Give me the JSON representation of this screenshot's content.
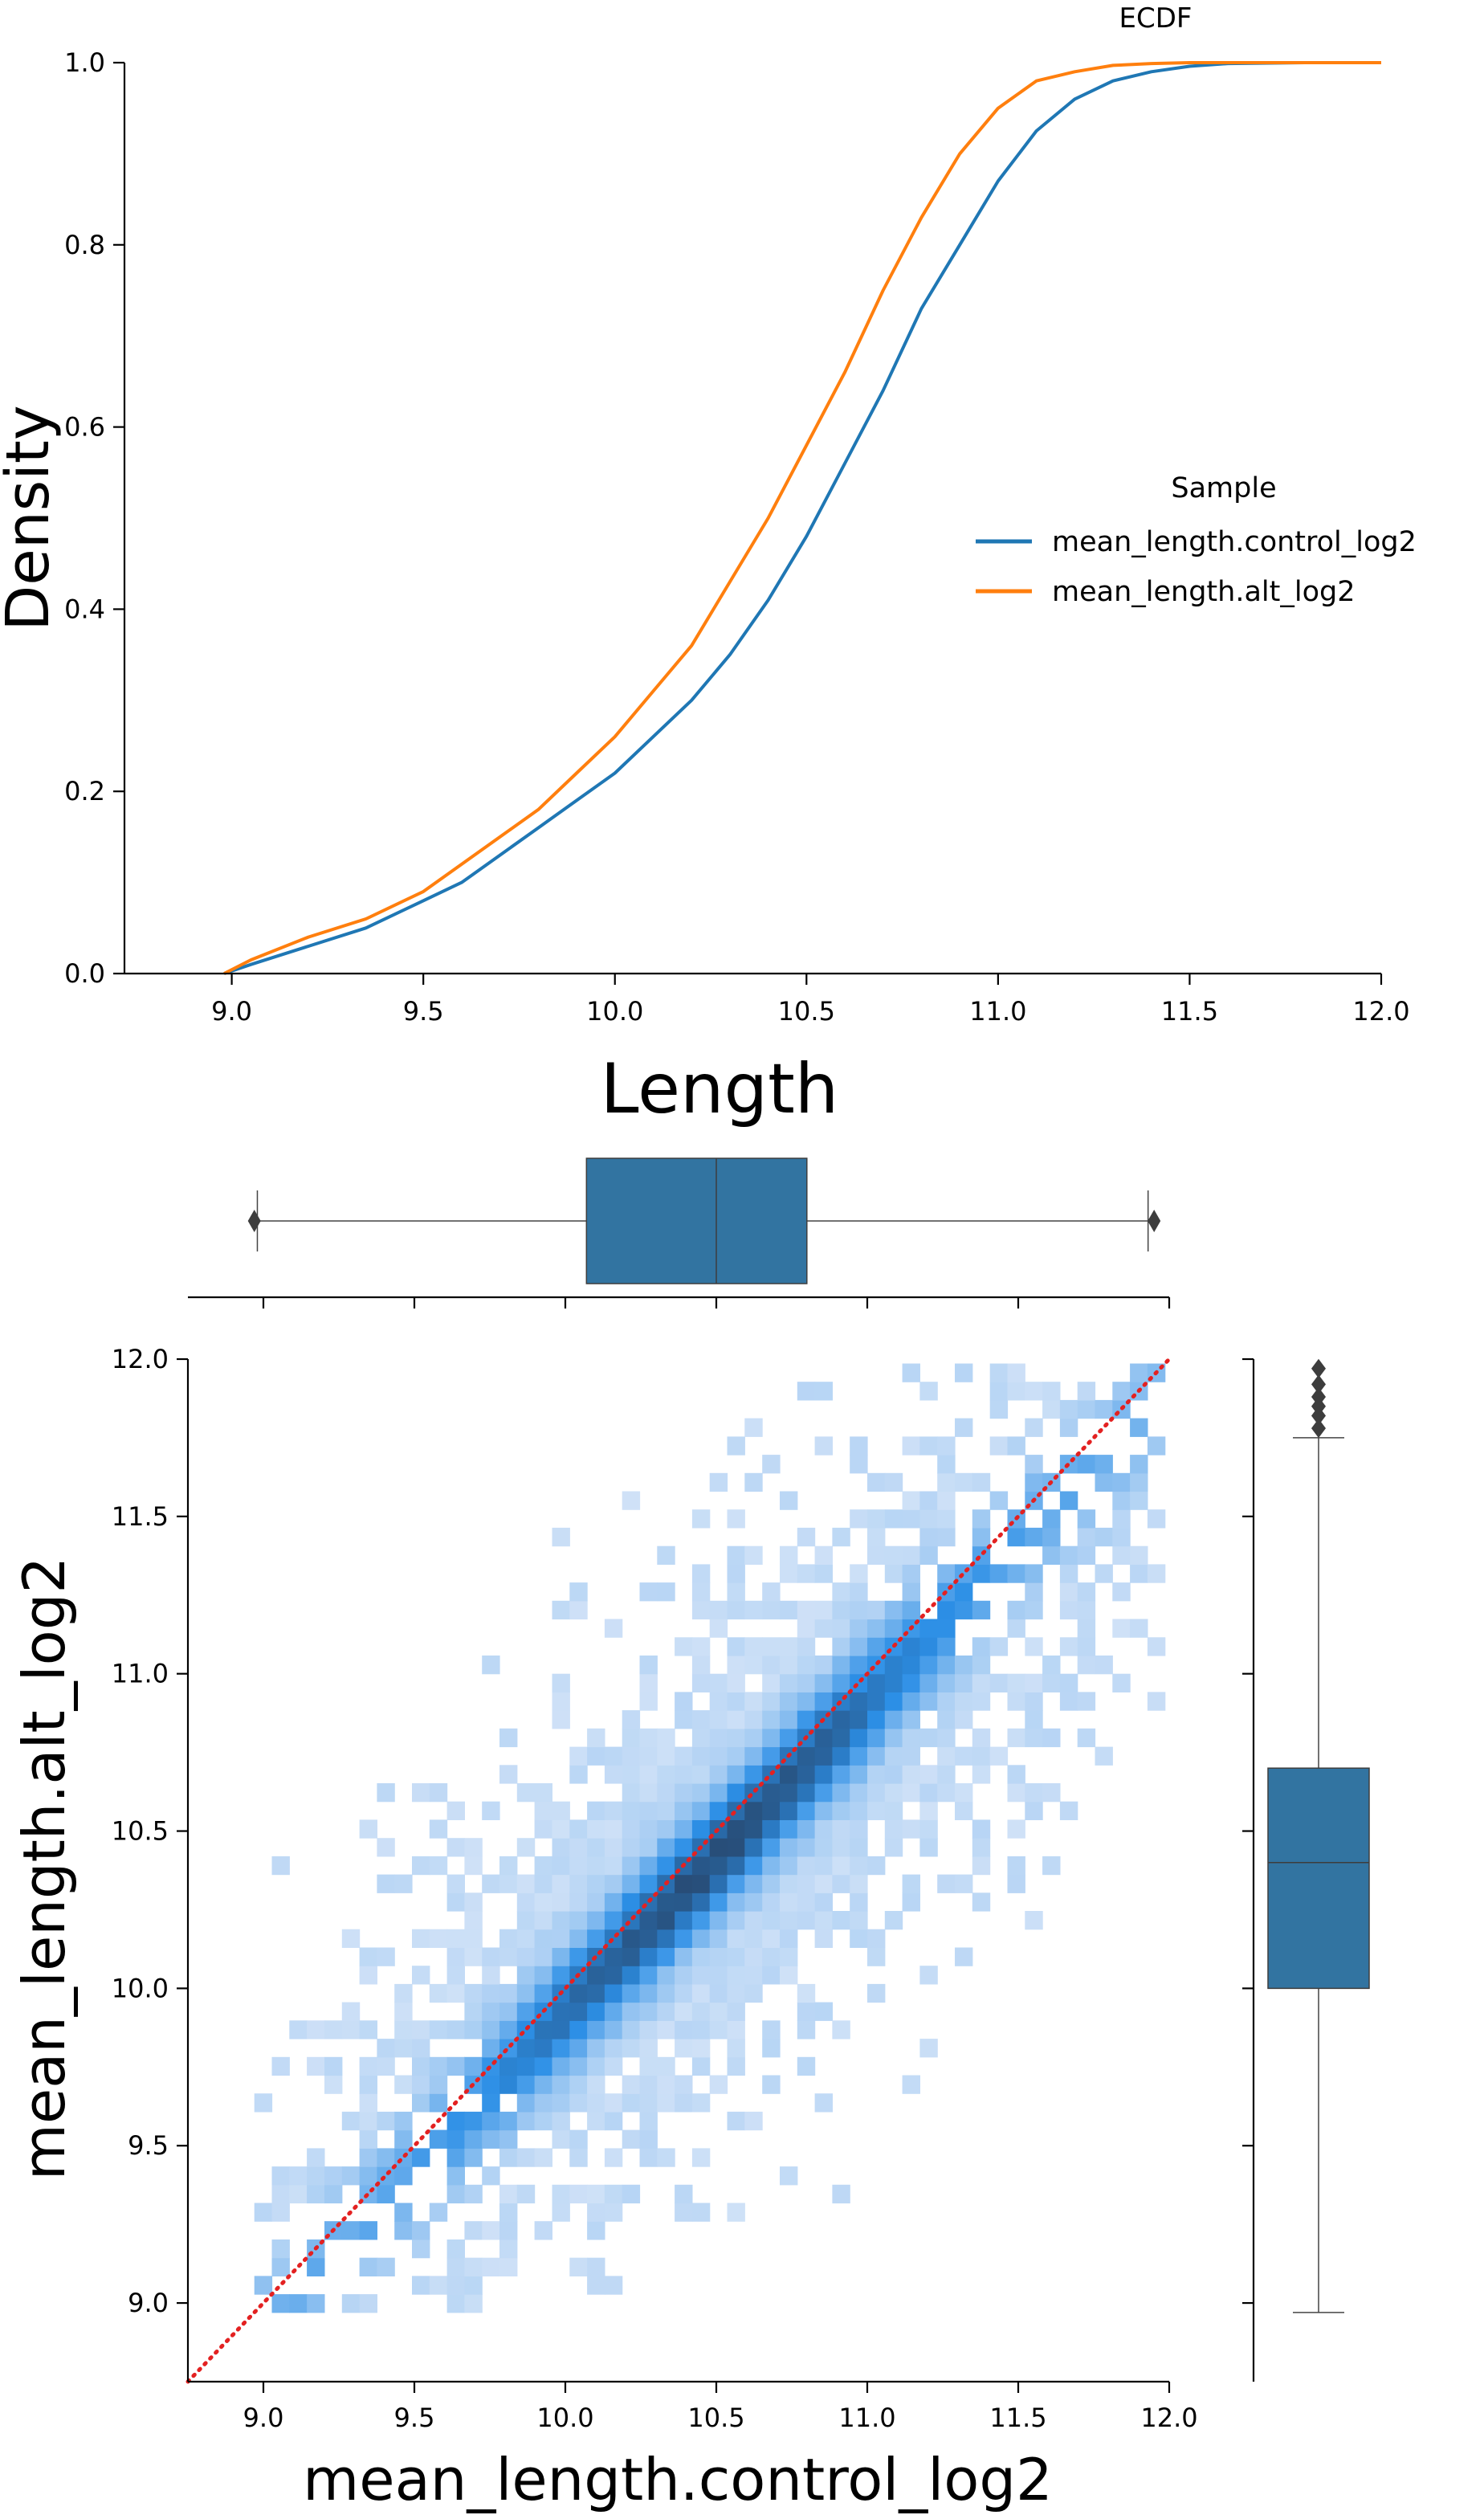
{
  "figure_title": "ECDF",
  "chart_data": [
    {
      "type": "line",
      "subtype": "ecdf",
      "title": "ECDF",
      "xlabel": "Length",
      "ylabel": "Density",
      "xlim": [
        8.72,
        12.0
      ],
      "ylim": [
        0.0,
        1.0
      ],
      "xticks": [
        9.0,
        9.5,
        10.0,
        10.5,
        11.0,
        11.5,
        12.0
      ],
      "yticks": [
        0.0,
        0.2,
        0.4,
        0.6,
        0.8,
        1.0
      ],
      "xtick_labels": [
        "9.0",
        "9.5",
        "10.0",
        "10.5",
        "11.0",
        "11.5",
        "12.0"
      ],
      "ytick_labels": [
        "0.0",
        "0.2",
        "0.4",
        "0.6",
        "0.8",
        "1.0"
      ],
      "grid": false,
      "legend": {
        "title": "Sample",
        "placement": "center-right"
      },
      "series": [
        {
          "name": "mean_length.control_log2",
          "color": "#1f77b4",
          "x": [
            8.98,
            9.05,
            9.2,
            9.35,
            9.5,
            9.6,
            9.7,
            9.8,
            9.9,
            10.0,
            10.1,
            10.2,
            10.3,
            10.4,
            10.5,
            10.6,
            10.7,
            10.8,
            10.9,
            11.0,
            11.1,
            11.2,
            11.3,
            11.4,
            11.5,
            11.6,
            11.8,
            12.0
          ],
          "y": [
            0.0,
            0.01,
            0.03,
            0.05,
            0.08,
            0.1,
            0.13,
            0.16,
            0.19,
            0.22,
            0.26,
            0.3,
            0.35,
            0.41,
            0.48,
            0.56,
            0.64,
            0.73,
            0.8,
            0.87,
            0.925,
            0.96,
            0.98,
            0.99,
            0.996,
            0.999,
            1.0,
            1.0
          ]
        },
        {
          "name": "mean_length.alt_log2",
          "color": "#ff7f0e",
          "x": [
            8.98,
            9.05,
            9.2,
            9.35,
            9.5,
            9.6,
            9.7,
            9.8,
            9.9,
            10.0,
            10.1,
            10.2,
            10.3,
            10.4,
            10.5,
            10.6,
            10.7,
            10.8,
            10.9,
            11.0,
            11.1,
            11.2,
            11.3,
            11.4,
            11.5,
            11.6,
            11.8,
            12.0
          ],
          "y": [
            0.0,
            0.015,
            0.04,
            0.06,
            0.09,
            0.12,
            0.15,
            0.18,
            0.22,
            0.26,
            0.31,
            0.36,
            0.43,
            0.5,
            0.58,
            0.66,
            0.75,
            0.83,
            0.9,
            0.95,
            0.98,
            0.99,
            0.997,
            0.999,
            1.0,
            1.0,
            1.0,
            1.0
          ]
        }
      ]
    },
    {
      "type": "heatmap",
      "subtype": "joint-2d-histogram",
      "xlabel": "mean_length.control_log2",
      "ylabel": "mean_length.alt_log2",
      "xlim": [
        8.75,
        12.0
      ],
      "ylim": [
        8.75,
        12.0
      ],
      "xticks": [
        9.0,
        9.5,
        10.0,
        10.5,
        11.0,
        11.5,
        12.0
      ],
      "yticks": [
        9.0,
        9.5,
        10.0,
        10.5,
        11.0,
        11.5,
        12.0
      ],
      "xtick_labels": [
        "9.0",
        "9.5",
        "10.0",
        "10.5",
        "11.0",
        "11.5",
        "12.0"
      ],
      "ytick_labels": [
        "9.0",
        "9.5",
        "10.0",
        "10.5",
        "11.0",
        "11.5",
        "12.0"
      ],
      "grid": false,
      "bin_width": 0.058,
      "data_range": {
        "x": [
          8.97,
          11.95
        ],
        "y": [
          8.97,
          11.98
        ]
      },
      "color_low": "#cfe1f7",
      "color_mid": "#2c8fe6",
      "color_high": "#27456a",
      "reference_line": {
        "style": "dotted",
        "color": "#e32121",
        "from": [
          8.75,
          8.75
        ],
        "to": [
          12.0,
          12.0
        ]
      },
      "marginal_x_boxplot": {
        "min": 8.98,
        "q1": 10.07,
        "median": 10.5,
        "q3": 10.8,
        "max": 11.93,
        "outliers": [
          8.97,
          11.95
        ],
        "color": "#3274a1"
      },
      "marginal_y_boxplot": {
        "min": 8.97,
        "q1": 10.0,
        "median": 10.4,
        "q3": 10.7,
        "max": 11.75,
        "outliers": [
          11.78,
          11.82,
          11.85,
          11.88,
          11.92,
          11.97
        ],
        "color": "#3274a1"
      }
    }
  ]
}
